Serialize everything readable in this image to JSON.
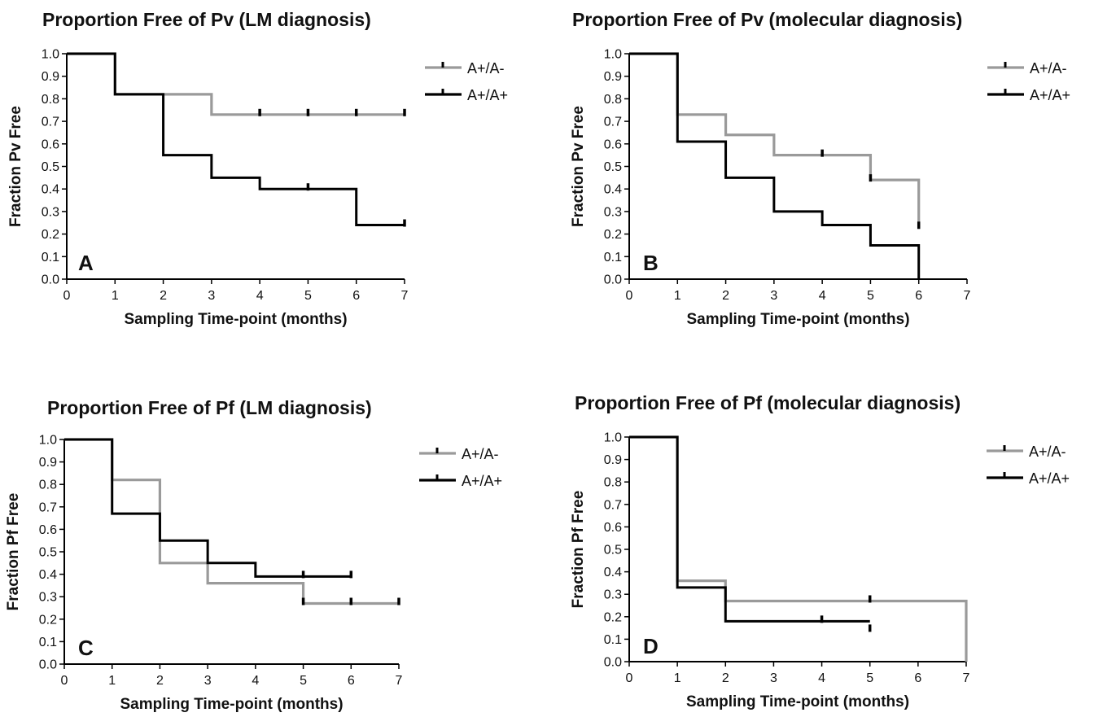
{
  "chart_data": [
    {
      "type": "line",
      "step": true,
      "panel_letter": "A",
      "title": "Proportion Free of Pv (LM diagnosis)",
      "xlabel": "Sampling Time-point (months)",
      "ylabel": "Fraction Pv Free",
      "xlim": [
        0,
        7
      ],
      "ylim": [
        0,
        1.0
      ],
      "x_ticks": [
        "0",
        "1",
        "2",
        "3",
        "4",
        "5",
        "6",
        "7"
      ],
      "y_ticks": [
        "0.0",
        "0.1",
        "0.2",
        "0.3",
        "0.4",
        "0.5",
        "0.6",
        "0.7",
        "0.8",
        "0.9",
        "1.0"
      ],
      "grid": false,
      "legend_position": "top-right",
      "series": [
        {
          "name": "A+/A-",
          "color": "#9a9a9a",
          "x": [
            0,
            1,
            2,
            3,
            7
          ],
          "y": [
            1.0,
            0.82,
            0.82,
            0.73,
            0.73
          ],
          "censored": [
            [
              4,
              0.73
            ],
            [
              5,
              0.73
            ],
            [
              6,
              0.73
            ],
            [
              7,
              0.73
            ]
          ]
        },
        {
          "name": "A+/A+",
          "color": "#000000",
          "x": [
            0,
            1,
            2,
            3,
            4,
            6,
            7
          ],
          "y": [
            1.0,
            0.82,
            0.55,
            0.45,
            0.4,
            0.24,
            0.24
          ],
          "censored": [
            [
              5,
              0.4
            ],
            [
              7,
              0.24
            ]
          ]
        }
      ]
    },
    {
      "type": "line",
      "step": true,
      "panel_letter": "B",
      "title": "Proportion Free of Pv (molecular diagnosis)",
      "xlabel": "Sampling Time-point (months)",
      "ylabel": "Fraction Pv Free",
      "xlim": [
        0,
        7
      ],
      "ylim": [
        0,
        1.0
      ],
      "x_ticks": [
        "0",
        "1",
        "2",
        "3",
        "4",
        "5",
        "6",
        "7"
      ],
      "y_ticks": [
        "0.0",
        "0.1",
        "0.2",
        "0.3",
        "0.4",
        "0.5",
        "0.6",
        "0.7",
        "0.8",
        "0.9",
        "1.0"
      ],
      "grid": false,
      "legend_position": "top-right",
      "series": [
        {
          "name": "A+/A-",
          "color": "#9a9a9a",
          "x": [
            0,
            1,
            2,
            3,
            5,
            6
          ],
          "y": [
            1.0,
            0.73,
            0.64,
            0.55,
            0.44,
            0.23
          ],
          "censored": [
            [
              4,
              0.55
            ],
            [
              5,
              0.44
            ],
            [
              6,
              0.23
            ]
          ]
        },
        {
          "name": "A+/A+",
          "color": "#000000",
          "x": [
            0,
            1,
            2,
            3,
            4,
            5,
            6
          ],
          "y": [
            1.0,
            0.61,
            0.45,
            0.3,
            0.24,
            0.15,
            0.0
          ],
          "censored": []
        }
      ]
    },
    {
      "type": "line",
      "step": true,
      "panel_letter": "C",
      "title": "Proportion Free of Pf (LM diagnosis)",
      "xlabel": "Sampling Time-point (months)",
      "ylabel": "Fraction Pf Free",
      "xlim": [
        0,
        7
      ],
      "ylim": [
        0,
        1.0
      ],
      "x_ticks": [
        "0",
        "1",
        "2",
        "3",
        "4",
        "5",
        "6",
        "7"
      ],
      "y_ticks": [
        "0.0",
        "0.1",
        "0.2",
        "0.3",
        "0.4",
        "0.5",
        "0.6",
        "0.7",
        "0.8",
        "0.9",
        "1.0"
      ],
      "grid": false,
      "legend_position": "top-right",
      "series": [
        {
          "name": "A+/A-",
          "color": "#9a9a9a",
          "x": [
            0,
            1,
            2,
            3,
            5,
            7
          ],
          "y": [
            1.0,
            0.82,
            0.45,
            0.36,
            0.27,
            0.27
          ],
          "censored": [
            [
              5,
              0.27
            ],
            [
              6,
              0.27
            ],
            [
              7,
              0.27
            ]
          ]
        },
        {
          "name": "A+/A+",
          "color": "#000000",
          "x": [
            0,
            1,
            2,
            3,
            4,
            6
          ],
          "y": [
            1.0,
            0.67,
            0.55,
            0.45,
            0.39,
            0.39
          ],
          "censored": [
            [
              5,
              0.39
            ],
            [
              6,
              0.39
            ]
          ]
        }
      ]
    },
    {
      "type": "line",
      "step": true,
      "panel_letter": "D",
      "title": "Proportion Free of Pf (molecular diagnosis)",
      "xlabel": "Sampling Time-point (months)",
      "ylabel": "Fraction Pf Free",
      "xlim": [
        0,
        7
      ],
      "ylim": [
        0,
        1.0
      ],
      "x_ticks": [
        "0",
        "1",
        "2",
        "3",
        "4",
        "5",
        "6",
        "7"
      ],
      "y_ticks": [
        "0.0",
        "0.1",
        "0.2",
        "0.3",
        "0.4",
        "0.5",
        "0.6",
        "0.7",
        "0.8",
        "0.9",
        "1.0"
      ],
      "grid": false,
      "legend_position": "top-right",
      "series": [
        {
          "name": "A+/A-",
          "color": "#9a9a9a",
          "x": [
            0,
            1,
            2,
            7
          ],
          "y": [
            1.0,
            0.36,
            0.27,
            0.0
          ],
          "censored": [
            [
              5,
              0.27
            ]
          ]
        },
        {
          "name": "A+/A+",
          "color": "#000000",
          "x": [
            0,
            1,
            2,
            5
          ],
          "y": [
            1.0,
            0.33,
            0.18,
            0.18
          ],
          "censored": [
            [
              4,
              0.18
            ],
            [
              5,
              0.14
            ]
          ]
        }
      ]
    }
  ]
}
